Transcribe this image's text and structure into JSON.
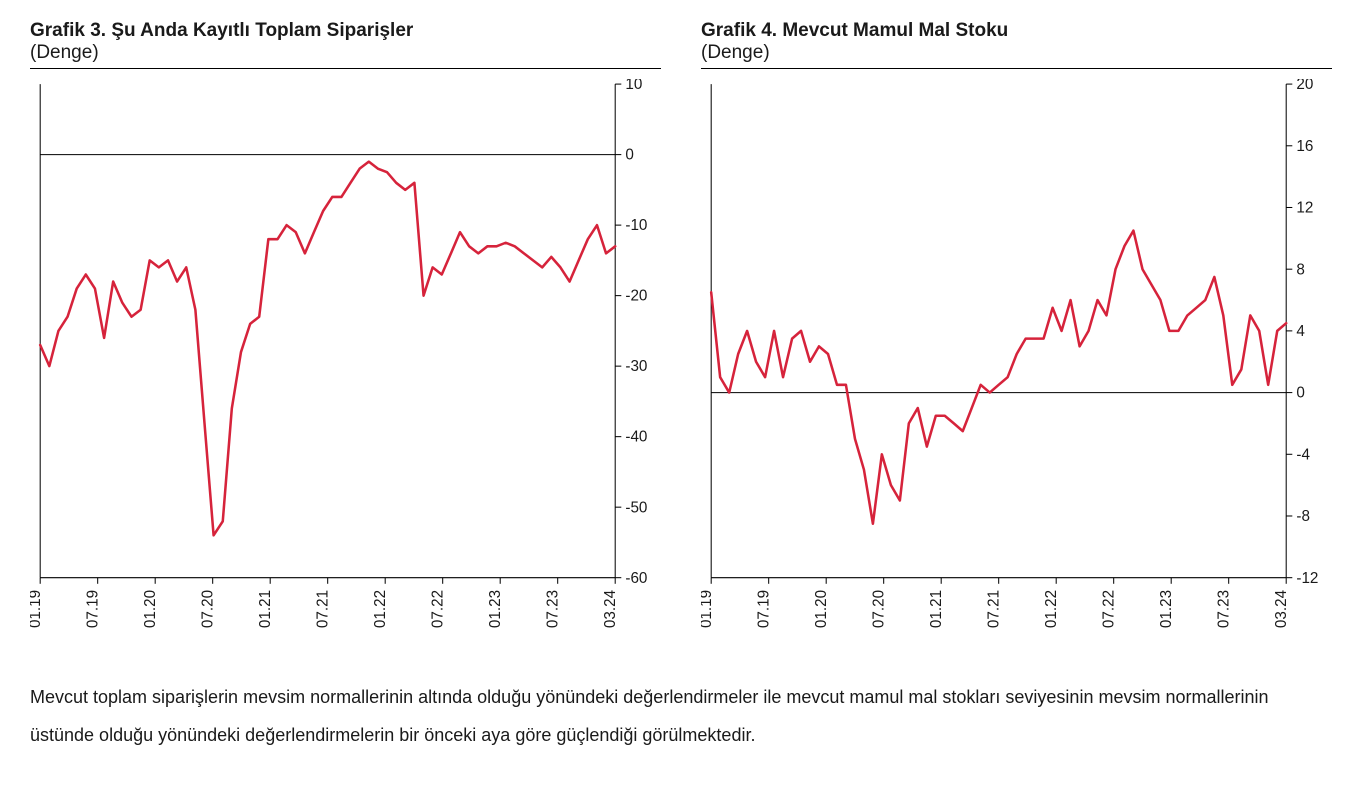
{
  "chart3": {
    "type": "line",
    "title": "Grafik 3. Şu Anda Kayıtlı Toplam Siparişler",
    "subtitle": "(Denge)",
    "line_color": "#d6233b",
    "line_width": 2.5,
    "background_color": "#ffffff",
    "axis_color": "#000000",
    "tick_color": "#000000",
    "ylim": [
      -60,
      10
    ],
    "yticks": [
      10,
      0,
      -10,
      -20,
      -30,
      -40,
      -50,
      -60
    ],
    "x_labels": [
      "01.19",
      "07.19",
      "01.20",
      "07.20",
      "01.21",
      "07.21",
      "01.22",
      "07.22",
      "01.23",
      "07.23",
      "03.24"
    ],
    "data": [
      -27,
      -30,
      -25,
      -23,
      -19,
      -17,
      -19,
      -26,
      -18,
      -21,
      -23,
      -22,
      -15,
      -16,
      -15,
      -18,
      -16,
      -22,
      -38,
      -54,
      -52,
      -36,
      -28,
      -24,
      -23,
      -12,
      -12,
      -10,
      -11,
      -14,
      -11,
      -8,
      -6,
      -6,
      -4,
      -2,
      -1,
      -2,
      -2.5,
      -4,
      -5,
      -4,
      -20,
      -16,
      -17,
      -14,
      -11,
      -13,
      -14,
      -13,
      -13,
      -12.5,
      -13,
      -14,
      -15,
      -16,
      -14.5,
      -16,
      -18,
      -15,
      -12,
      -10,
      -14,
      -13
    ]
  },
  "chart4": {
    "type": "line",
    "title": "Grafik 4. Mevcut Mamul Mal Stoku",
    "subtitle": "(Denge)",
    "line_color": "#d6233b",
    "line_width": 2.5,
    "background_color": "#ffffff",
    "axis_color": "#000000",
    "tick_color": "#000000",
    "ylim": [
      -12,
      20
    ],
    "yticks": [
      20,
      16,
      12,
      8,
      4,
      0,
      -4,
      -8,
      -12
    ],
    "x_labels": [
      "01.19",
      "07.19",
      "01.20",
      "07.20",
      "01.21",
      "07.21",
      "01.22",
      "07.22",
      "01.23",
      "07.23",
      "03.24"
    ],
    "data": [
      6.5,
      1,
      0,
      2.5,
      4,
      2,
      1,
      4,
      1,
      3.5,
      4,
      2,
      3,
      2.5,
      0.5,
      0.5,
      -3,
      -5,
      -8.5,
      -4,
      -6,
      -7,
      -2,
      -1,
      -3.5,
      -1.5,
      -1.5,
      -2,
      -2.5,
      -1,
      0.5,
      0,
      0.5,
      1,
      2.5,
      3.5,
      3.5,
      3.5,
      5.5,
      4,
      6,
      3,
      4,
      6,
      5,
      8,
      9.5,
      10.5,
      8,
      7,
      6,
      4,
      4,
      5,
      5.5,
      6,
      7.5,
      5,
      0.5,
      1.5,
      5,
      4,
      0.5,
      4,
      4.5
    ]
  },
  "caption": "Mevcut toplam siparişlerin mevsim normallerinin altında olduğu yönündeki değerlendirmeler ile mevcut mamul mal stokları seviyesinin mevsim normallerinin üstünde olduğu yönündeki değerlendirmelerin bir önceki aya göre güçlendiği görülmektedir.",
  "label_fontsize": 15,
  "title_fontsize": 19
}
